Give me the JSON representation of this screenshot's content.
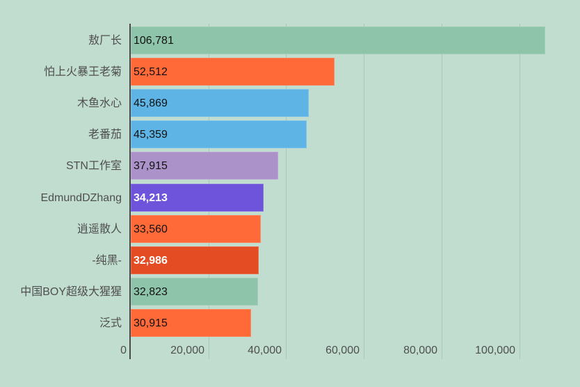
{
  "chart_data": {
    "type": "bar",
    "orientation": "horizontal",
    "title": "",
    "xlabel": "",
    "ylabel": "",
    "xlim": [
      0,
      110000
    ],
    "grid": true,
    "x_ticks": [
      0,
      20000,
      40000,
      60000,
      80000,
      100000
    ],
    "x_tick_labels": [
      "0",
      "20,000",
      "40,000",
      "60,000",
      "80,000",
      "100,000"
    ],
    "categories": [
      "敖厂长",
      "怕上火暴王老菊",
      "木鱼水心",
      "老番茄",
      "STN工作室",
      "EdmundDZhang",
      "逍遥散人",
      "-纯黑-",
      "中国BOY超级大猩猩",
      "泛式"
    ],
    "values": [
      106781,
      52512,
      45869,
      45359,
      37915,
      34213,
      33560,
      32986,
      32823,
      30915
    ],
    "value_labels": [
      "106,781",
      "52,512",
      "45,869",
      "45,359",
      "37,915",
      "34,213",
      "33,560",
      "32,986",
      "32,823",
      "30,915"
    ],
    "colors": [
      "#8ec4a9",
      "#ff6a38",
      "#5eb4e4",
      "#5eb4e4",
      "#ab92c9",
      "#6e54db",
      "#ff6a38",
      "#e44d24",
      "#8ec4a9",
      "#ff6a38"
    ],
    "label_light": [
      false,
      false,
      false,
      false,
      false,
      true,
      false,
      true,
      false,
      false
    ]
  },
  "theme": {
    "background": "#c0ddcf",
    "grid_color": "#a9c6b8",
    "axis_color": "#4a4a4a"
  }
}
